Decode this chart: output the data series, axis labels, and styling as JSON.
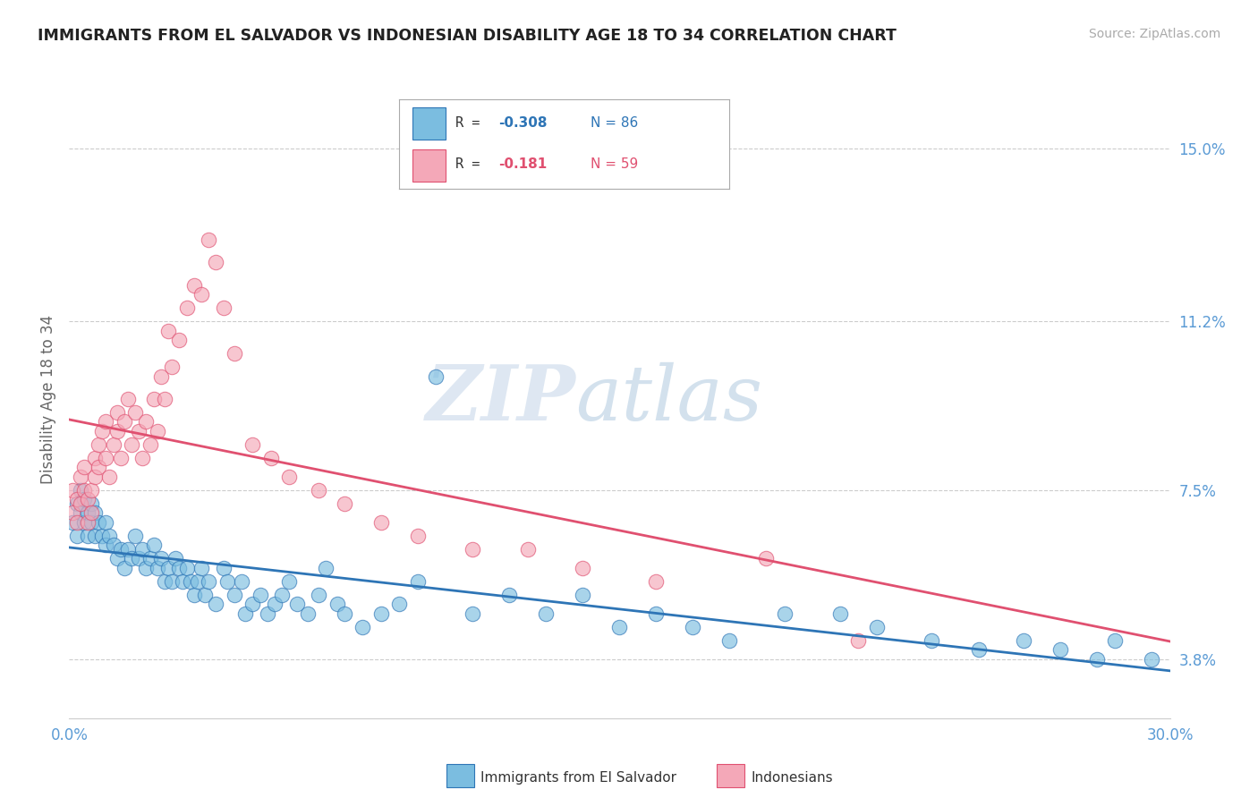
{
  "title": "IMMIGRANTS FROM EL SALVADOR VS INDONESIAN DISABILITY AGE 18 TO 34 CORRELATION CHART",
  "source_text": "Source: ZipAtlas.com",
  "ylabel": "Disability Age 18 to 34",
  "xlim": [
    0.0,
    0.3
  ],
  "ylim": [
    0.025,
    0.165
  ],
  "yticks": [
    0.038,
    0.075,
    0.112,
    0.15
  ],
  "ytick_labels": [
    "3.8%",
    "7.5%",
    "11.2%",
    "15.0%"
  ],
  "xticks": [
    0.0,
    0.05,
    0.1,
    0.15,
    0.2,
    0.25,
    0.3
  ],
  "xtick_labels_show": [
    "0.0%",
    "",
    "",
    "",
    "",
    "",
    "30.0%"
  ],
  "legend_r1": "R =  -0.308",
  "legend_n1": "N = 86",
  "legend_r2": "R =  -0.181",
  "legend_n2": "N = 59",
  "color_blue": "#7bbde0",
  "color_pink": "#f4a8b8",
  "color_blue_line": "#2e75b6",
  "color_pink_line": "#e05070",
  "color_axis_labels": "#5b9bd5",
  "watermark_color": "#d0dff0",
  "watermark_text": "ZIPatlas",
  "blue_scatter_x": [
    0.001,
    0.002,
    0.002,
    0.003,
    0.003,
    0.004,
    0.004,
    0.005,
    0.005,
    0.006,
    0.006,
    0.007,
    0.007,
    0.008,
    0.009,
    0.01,
    0.01,
    0.011,
    0.012,
    0.013,
    0.014,
    0.015,
    0.016,
    0.017,
    0.018,
    0.019,
    0.02,
    0.021,
    0.022,
    0.023,
    0.024,
    0.025,
    0.026,
    0.027,
    0.028,
    0.029,
    0.03,
    0.031,
    0.032,
    0.033,
    0.034,
    0.035,
    0.036,
    0.037,
    0.038,
    0.04,
    0.042,
    0.043,
    0.045,
    0.047,
    0.048,
    0.05,
    0.052,
    0.054,
    0.056,
    0.058,
    0.06,
    0.062,
    0.065,
    0.068,
    0.07,
    0.073,
    0.075,
    0.08,
    0.085,
    0.09,
    0.095,
    0.1,
    0.11,
    0.12,
    0.13,
    0.14,
    0.15,
    0.16,
    0.17,
    0.18,
    0.195,
    0.21,
    0.22,
    0.235,
    0.248,
    0.26,
    0.27,
    0.28,
    0.285,
    0.295
  ],
  "blue_scatter_y": [
    0.068,
    0.072,
    0.065,
    0.07,
    0.075,
    0.068,
    0.073,
    0.065,
    0.07,
    0.068,
    0.072,
    0.065,
    0.07,
    0.068,
    0.065,
    0.063,
    0.068,
    0.065,
    0.063,
    0.06,
    0.062,
    0.058,
    0.062,
    0.06,
    0.065,
    0.06,
    0.062,
    0.058,
    0.06,
    0.063,
    0.058,
    0.06,
    0.055,
    0.058,
    0.055,
    0.06,
    0.058,
    0.055,
    0.058,
    0.055,
    0.052,
    0.055,
    0.058,
    0.052,
    0.055,
    0.05,
    0.058,
    0.055,
    0.052,
    0.055,
    0.048,
    0.05,
    0.052,
    0.048,
    0.05,
    0.052,
    0.055,
    0.05,
    0.048,
    0.052,
    0.058,
    0.05,
    0.048,
    0.045,
    0.048,
    0.05,
    0.055,
    0.1,
    0.048,
    0.052,
    0.048,
    0.052,
    0.045,
    0.048,
    0.045,
    0.042,
    0.048,
    0.048,
    0.045,
    0.042,
    0.04,
    0.042,
    0.04,
    0.038,
    0.042,
    0.038
  ],
  "pink_scatter_x": [
    0.001,
    0.001,
    0.002,
    0.002,
    0.003,
    0.003,
    0.004,
    0.004,
    0.005,
    0.005,
    0.006,
    0.006,
    0.007,
    0.007,
    0.008,
    0.008,
    0.009,
    0.01,
    0.01,
    0.011,
    0.012,
    0.013,
    0.013,
    0.014,
    0.015,
    0.016,
    0.017,
    0.018,
    0.019,
    0.02,
    0.021,
    0.022,
    0.023,
    0.024,
    0.025,
    0.026,
    0.027,
    0.028,
    0.03,
    0.032,
    0.034,
    0.036,
    0.038,
    0.04,
    0.042,
    0.045,
    0.05,
    0.055,
    0.06,
    0.068,
    0.075,
    0.085,
    0.095,
    0.11,
    0.125,
    0.14,
    0.16,
    0.19,
    0.215
  ],
  "pink_scatter_y": [
    0.07,
    0.075,
    0.068,
    0.073,
    0.072,
    0.078,
    0.075,
    0.08,
    0.068,
    0.073,
    0.07,
    0.075,
    0.082,
    0.078,
    0.085,
    0.08,
    0.088,
    0.082,
    0.09,
    0.078,
    0.085,
    0.088,
    0.092,
    0.082,
    0.09,
    0.095,
    0.085,
    0.092,
    0.088,
    0.082,
    0.09,
    0.085,
    0.095,
    0.088,
    0.1,
    0.095,
    0.11,
    0.102,
    0.108,
    0.115,
    0.12,
    0.118,
    0.13,
    0.125,
    0.115,
    0.105,
    0.085,
    0.082,
    0.078,
    0.075,
    0.072,
    0.068,
    0.065,
    0.062,
    0.062,
    0.058,
    0.055,
    0.06,
    0.042
  ]
}
